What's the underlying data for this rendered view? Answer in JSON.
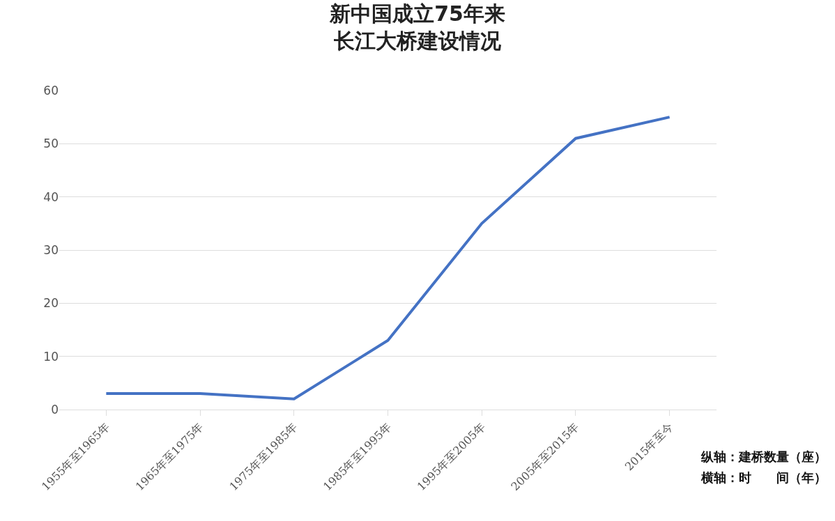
{
  "chart_data": {
    "type": "line",
    "title": "新中国成立75年来",
    "subtitle": "长江大桥建设情况",
    "categories": [
      "1955年至1965年",
      "1965年至1975年",
      "1975年至1985年",
      "1985年至1995年",
      "1995年至2005年",
      "2005年至2015年",
      "2015年至今"
    ],
    "series": [
      {
        "color": "#4472c4",
        "values": [
          3,
          3,
          2,
          13,
          35,
          51,
          55
        ]
      }
    ],
    "ylim": [
      0,
      60
    ],
    "yticks": [
      0,
      10,
      20,
      30,
      40,
      50,
      60
    ],
    "grid": "y",
    "marker": "none",
    "line_style": "solid",
    "annotations": [
      "纵轴：建桥数量（座）",
      "横轴：时　　间（年）"
    ]
  }
}
